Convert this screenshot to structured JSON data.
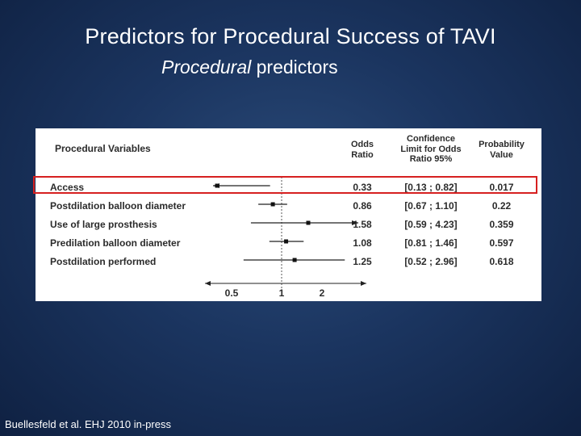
{
  "slide": {
    "title": "Predictors for Procedural Success of TAVI",
    "subtitle_italic": "Procedural",
    "subtitle_rest": " predictors",
    "footer": "Buellesfeld et al. EHJ 2010 in-press"
  },
  "colors": {
    "background": "#1b3560",
    "highlight": "#d62020"
  },
  "chart_data": {
    "type": "table",
    "columns": {
      "variable": "Procedural Variables",
      "odds": "Odds Ratio",
      "ci": "Confidence Limit for Odds Ratio 95%",
      "p": "Probability Value"
    },
    "column_header_lines": {
      "odds": [
        "Odds",
        "Ratio"
      ],
      "ci": [
        "Confidence",
        "Limit for Odds",
        "Ratio 95%"
      ],
      "p": [
        "Probability",
        "Value"
      ]
    },
    "rows": [
      {
        "variable": "Access",
        "or": 0.33,
        "or_text": "0.33",
        "ci_low": 0.13,
        "ci_high": 0.82,
        "ci_text": "[0.13 ; 0.82]",
        "p_text": "0.017",
        "highlighted": true
      },
      {
        "variable": "Postdilation balloon diameter",
        "or": 0.86,
        "or_text": "0.86",
        "ci_low": 0.67,
        "ci_high": 1.1,
        "ci_text": "[0.67 ; 1.10]",
        "p_text": "0.22",
        "highlighted": false
      },
      {
        "variable": "Use of large prosthesis",
        "or": 1.58,
        "or_text": "1.58",
        "ci_low": 0.59,
        "ci_high": 4.23,
        "ci_text": "[0.59 ; 4.23]",
        "p_text": "0.359",
        "highlighted": false
      },
      {
        "variable": "Predilation balloon diameter",
        "or": 1.08,
        "or_text": "1.08",
        "ci_low": 0.81,
        "ci_high": 1.46,
        "ci_text": "[0.81 ; 1.46]",
        "p_text": "0.597",
        "highlighted": false
      },
      {
        "variable": "Postdilation performed",
        "or": 1.25,
        "or_text": "1.25",
        "ci_low": 0.52,
        "ci_high": 2.96,
        "ci_text": "[0.52 ; 2.96]",
        "p_text": "0.618",
        "highlighted": false
      }
    ],
    "forest_axis": {
      "scale": "log",
      "ticks": [
        0.5,
        1,
        2
      ],
      "tick_labels": [
        "0.5",
        "1",
        "2"
      ],
      "reference_line": 1
    }
  }
}
